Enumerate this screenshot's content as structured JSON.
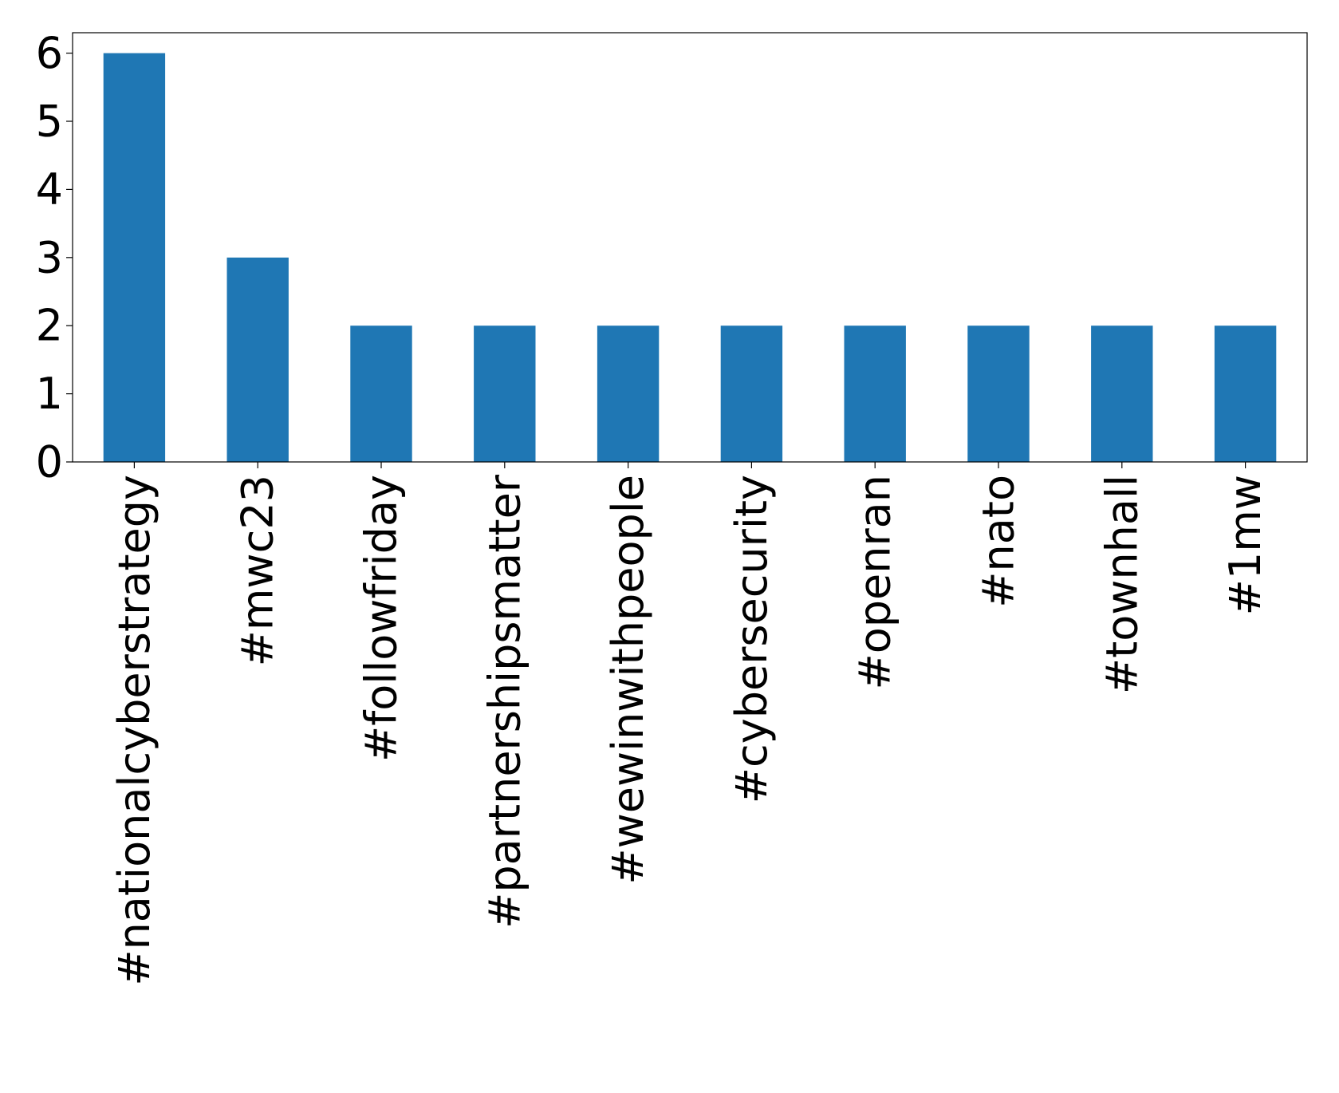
{
  "chart_data": {
    "type": "bar",
    "categories": [
      "#nationalcyberstrategy",
      "#mwc23",
      "#followfriday",
      "#partnershipsmatter",
      "#wewinwithpeople",
      "#cybersecurity",
      "#openran",
      "#nato",
      "#townhall",
      "#1mw"
    ],
    "values": [
      6,
      3,
      2,
      2,
      2,
      2,
      2,
      2,
      2,
      2
    ],
    "color": "#1f77b4",
    "ylim": [
      0,
      6.3
    ],
    "yticks": [
      0,
      1,
      2,
      3,
      4,
      5,
      6
    ],
    "grid": false
  }
}
